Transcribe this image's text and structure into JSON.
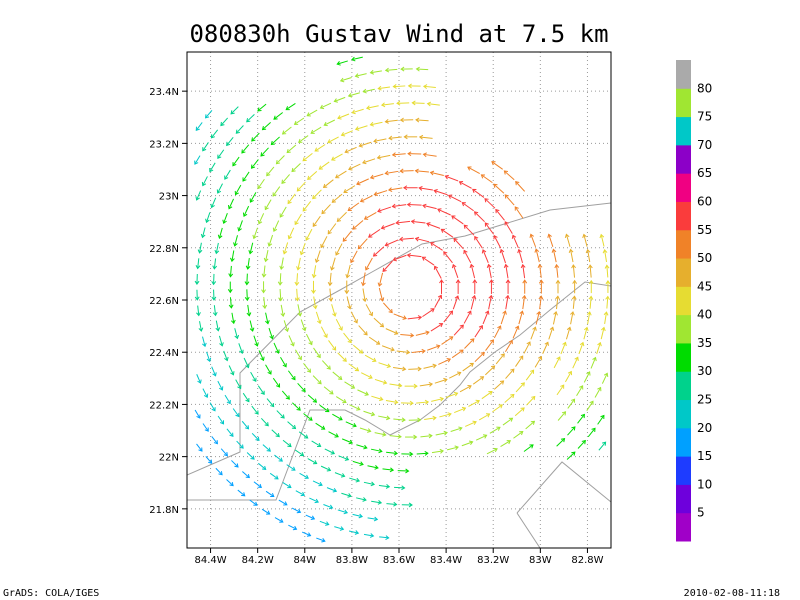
{
  "chart_data": {
    "type": "vector-field",
    "title": "080830h Gustav Wind at 7.5 km",
    "xlabel": "",
    "ylabel": "",
    "x_ticks": [
      "84.4W",
      "84.2W",
      "84W",
      "83.8W",
      "83.6W",
      "83.4W",
      "83.2W",
      "83W",
      "82.8W"
    ],
    "x_tick_values": [
      -84.4,
      -84.2,
      -84.0,
      -83.8,
      -83.6,
      -83.4,
      -83.2,
      -83.0,
      -82.8
    ],
    "y_ticks": [
      "23.4N",
      "23.2N",
      "23N",
      "22.8N",
      "22.6N",
      "22.4N",
      "22.2N",
      "22N",
      "21.8N"
    ],
    "y_tick_values": [
      23.4,
      23.2,
      23.0,
      22.8,
      22.6,
      22.4,
      22.2,
      22.0,
      21.8
    ],
    "xlim": [
      -84.5,
      -82.7
    ],
    "ylim": [
      21.65,
      23.55
    ],
    "grid": true,
    "center_lon": -83.55,
    "center_lat": 22.65,
    "colorbar": {
      "ticks": [
        "5",
        "10",
        "15",
        "20",
        "25",
        "30",
        "35",
        "40",
        "45",
        "50",
        "55",
        "60",
        "65",
        "70",
        "75",
        "80"
      ],
      "colors": [
        "#a000c8",
        "#6e00dc",
        "#1e3cff",
        "#00a0ff",
        "#00c8c8",
        "#00d28c",
        "#00dc00",
        "#a0e632",
        "#e6dc32",
        "#e6af2d",
        "#f08228",
        "#fa3c3c",
        "#f00082",
        "#8c00c8",
        "#00c8c8",
        "#a0e632",
        "#aaaaaa"
      ]
    }
  },
  "footer": {
    "left": "GrADS: COLA/IGES",
    "right": "2010-02-08-11:18"
  }
}
